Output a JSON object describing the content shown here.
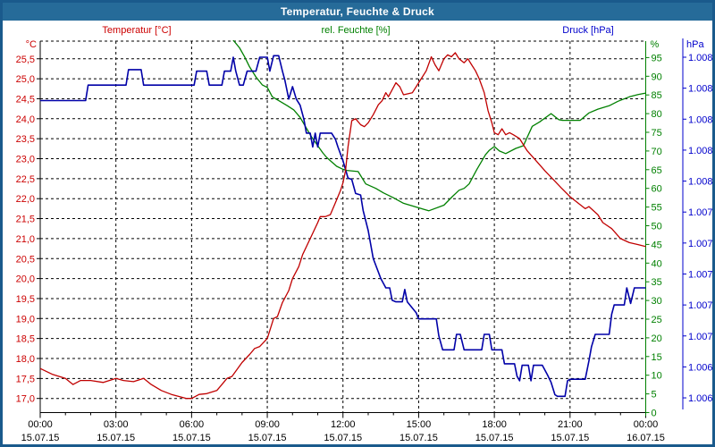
{
  "window": {
    "title": "Temperatur, Feuchte & Druck"
  },
  "legend": [
    {
      "key": "temperatur",
      "label": "Temperatur [°C]",
      "color": "#cc0000"
    },
    {
      "key": "feuchte",
      "label": "rel. Feuchte [%]",
      "color": "#008000"
    },
    {
      "key": "druck",
      "label": "Druck [hPa]",
      "color": "#0000cc"
    }
  ],
  "axes": {
    "left": {
      "unit": "°C",
      "color": "#cc0000",
      "ticks": [
        "25,5",
        "25,0",
        "24,5",
        "24,0",
        "23,5",
        "23,0",
        "22,5",
        "22,0",
        "21,5",
        "21,0",
        "20,5",
        "20,0",
        "19,5",
        "19,0",
        "18,5",
        "18,0",
        "17,5",
        "17,0"
      ]
    },
    "right_humidity": {
      "unit": "%",
      "color": "#008000",
      "ticks": [
        "95",
        "90",
        "85",
        "80",
        "75",
        "70",
        "65",
        "60",
        "55",
        "50",
        "45",
        "40",
        "35",
        "30",
        "25",
        "20",
        "15",
        "10",
        "5",
        "0"
      ]
    },
    "right_pressure": {
      "unit": "hPa",
      "color": "#0000cc",
      "ticks": [
        "1.008",
        "1.008",
        "1.008",
        "1.008",
        "1.008",
        "1.007",
        "1.007",
        "1.007",
        "1.007",
        "1.007",
        "1.006",
        "1.006"
      ]
    },
    "x": {
      "ticks": [
        {
          "time": "00:00",
          "date": "15.07.15"
        },
        {
          "time": "03:00",
          "date": "15.07.15"
        },
        {
          "time": "06:00",
          "date": "15.07.15"
        },
        {
          "time": "09:00",
          "date": "15.07.15"
        },
        {
          "time": "12:00",
          "date": "15.07.15"
        },
        {
          "time": "15:00",
          "date": "15.07.15"
        },
        {
          "time": "18:00",
          "date": "15.07.15"
        },
        {
          "time": "21:00",
          "date": "15.07.15"
        },
        {
          "time": "00:00",
          "date": "16.07.15"
        }
      ]
    }
  },
  "chart_data": {
    "type": "line",
    "title": "Temperatur, Feuchte & Druck",
    "x_unit": "hours (00:00 15.07.15 – 00:00 16.07.15)",
    "x_range": [
      0,
      24
    ],
    "grid": "dashed black, 0.5 °C horizontal steps, 3 h vertical steps",
    "legend_position": "top",
    "series": [
      {
        "key": "temperatur",
        "name": "Temperatur [°C]",
        "color": "#c00000",
        "axis": "temp_C",
        "axis_range": [
          17.0,
          25.5
        ],
        "points": [
          [
            0,
            17.75
          ],
          [
            0.5,
            17.6
          ],
          [
            1.0,
            17.5
          ],
          [
            1.3,
            17.35
          ],
          [
            1.6,
            17.45
          ],
          [
            2.0,
            17.45
          ],
          [
            2.5,
            17.4
          ],
          [
            3.0,
            17.5
          ],
          [
            3.3,
            17.45
          ],
          [
            3.7,
            17.42
          ],
          [
            4.1,
            17.5
          ],
          [
            4.4,
            17.35
          ],
          [
            4.8,
            17.2
          ],
          [
            5.2,
            17.1
          ],
          [
            5.5,
            17.05
          ],
          [
            5.8,
            17.0
          ],
          [
            6.0,
            17.0
          ],
          [
            6.3,
            17.1
          ],
          [
            6.6,
            17.12
          ],
          [
            7.0,
            17.2
          ],
          [
            7.2,
            17.35
          ],
          [
            7.4,
            17.5
          ],
          [
            7.6,
            17.55
          ],
          [
            8.0,
            17.9
          ],
          [
            8.3,
            18.1
          ],
          [
            8.5,
            18.25
          ],
          [
            8.7,
            18.3
          ],
          [
            9.0,
            18.5
          ],
          [
            9.25,
            19.0
          ],
          [
            9.4,
            19.05
          ],
          [
            9.6,
            19.4
          ],
          [
            9.85,
            19.7
          ],
          [
            10.0,
            20.0
          ],
          [
            10.25,
            20.3
          ],
          [
            10.4,
            20.6
          ],
          [
            10.7,
            21.0
          ],
          [
            11.0,
            21.4
          ],
          [
            11.1,
            21.55
          ],
          [
            11.3,
            21.55
          ],
          [
            11.5,
            21.6
          ],
          [
            11.7,
            21.9
          ],
          [
            11.9,
            22.2
          ],
          [
            12.0,
            22.4
          ],
          [
            12.1,
            22.7
          ],
          [
            12.2,
            23.3
          ],
          [
            12.35,
            23.95
          ],
          [
            12.5,
            24.0
          ],
          [
            12.7,
            23.85
          ],
          [
            12.85,
            23.8
          ],
          [
            13.0,
            23.9
          ],
          [
            13.2,
            24.1
          ],
          [
            13.4,
            24.35
          ],
          [
            13.55,
            24.45
          ],
          [
            13.7,
            24.65
          ],
          [
            13.8,
            24.55
          ],
          [
            14.1,
            24.9
          ],
          [
            14.25,
            24.8
          ],
          [
            14.4,
            24.6
          ],
          [
            14.75,
            24.65
          ],
          [
            15.0,
            24.9
          ],
          [
            15.3,
            25.2
          ],
          [
            15.5,
            25.55
          ],
          [
            15.65,
            25.35
          ],
          [
            15.8,
            25.2
          ],
          [
            16.0,
            25.5
          ],
          [
            16.15,
            25.6
          ],
          [
            16.3,
            25.55
          ],
          [
            16.45,
            25.65
          ],
          [
            16.6,
            25.5
          ],
          [
            16.8,
            25.4
          ],
          [
            16.95,
            25.5
          ],
          [
            17.1,
            25.35
          ],
          [
            17.25,
            25.2
          ],
          [
            17.4,
            25.0
          ],
          [
            17.6,
            24.65
          ],
          [
            17.75,
            24.2
          ],
          [
            17.9,
            23.9
          ],
          [
            18.0,
            23.65
          ],
          [
            18.15,
            23.6
          ],
          [
            18.3,
            23.75
          ],
          [
            18.45,
            23.6
          ],
          [
            18.6,
            23.65
          ],
          [
            18.75,
            23.6
          ],
          [
            19.0,
            23.5
          ],
          [
            19.3,
            23.2
          ],
          [
            19.65,
            22.95
          ],
          [
            20.0,
            22.7
          ],
          [
            20.3,
            22.5
          ],
          [
            20.65,
            22.27
          ],
          [
            21.0,
            22.05
          ],
          [
            21.3,
            21.9
          ],
          [
            21.6,
            21.75
          ],
          [
            21.75,
            21.8
          ],
          [
            22.1,
            21.6
          ],
          [
            22.3,
            21.4
          ],
          [
            22.65,
            21.25
          ],
          [
            23.0,
            21.0
          ],
          [
            23.35,
            20.9
          ],
          [
            23.7,
            20.85
          ],
          [
            24,
            20.8
          ]
        ]
      },
      {
        "key": "feuchte",
        "name": "rel. Feuchte [%]",
        "color": "#008000",
        "axis": "percent",
        "axis_range": [
          0,
          100
        ],
        "points": [
          [
            0,
            100.5
          ],
          [
            7.55,
            100.5
          ],
          [
            7.9,
            97.6
          ],
          [
            8.1,
            95.2
          ],
          [
            8.3,
            92.5
          ],
          [
            8.55,
            89.8
          ],
          [
            8.8,
            87.7
          ],
          [
            9.0,
            87.0
          ],
          [
            9.2,
            84.5
          ],
          [
            9.5,
            83.3
          ],
          [
            9.8,
            82.1
          ],
          [
            10.05,
            81.0
          ],
          [
            10.3,
            79.0
          ],
          [
            10.5,
            76.7
          ],
          [
            10.75,
            73.8
          ],
          [
            11.0,
            71.4
          ],
          [
            11.2,
            69.5
          ],
          [
            11.35,
            68.3
          ],
          [
            11.55,
            67.1
          ],
          [
            11.75,
            65.9
          ],
          [
            12.0,
            65.1
          ],
          [
            12.15,
            64.8
          ],
          [
            12.6,
            64.5
          ],
          [
            12.9,
            61.2
          ],
          [
            13.3,
            60.0
          ],
          [
            13.6,
            58.8
          ],
          [
            14.0,
            57.5
          ],
          [
            14.4,
            56.0
          ],
          [
            14.8,
            55.2
          ],
          [
            15.2,
            54.4
          ],
          [
            15.4,
            54.0
          ],
          [
            16.0,
            55.5
          ],
          [
            16.35,
            57.9
          ],
          [
            16.6,
            59.5
          ],
          [
            16.8,
            60.0
          ],
          [
            17.0,
            61.2
          ],
          [
            17.3,
            65.0
          ],
          [
            17.65,
            69.0
          ],
          [
            17.8,
            70.2
          ],
          [
            18.0,
            71.2
          ],
          [
            18.2,
            70.0
          ],
          [
            18.45,
            69.3
          ],
          [
            18.85,
            70.7
          ],
          [
            19.15,
            71.4
          ],
          [
            19.5,
            76.6
          ],
          [
            19.8,
            77.8
          ],
          [
            20.0,
            78.8
          ],
          [
            20.25,
            80.0
          ],
          [
            20.55,
            78.4
          ],
          [
            20.7,
            78.2
          ],
          [
            21.4,
            78.2
          ],
          [
            21.75,
            80.2
          ],
          [
            22.1,
            81.2
          ],
          [
            22.55,
            82.1
          ],
          [
            22.9,
            83.3
          ],
          [
            23.35,
            84.5
          ],
          [
            23.7,
            85.1
          ],
          [
            24,
            85.5
          ]
        ]
      },
      {
        "key": "druck",
        "name": "Druck [hPa]",
        "color": "#0000a8",
        "axis": "hPa",
        "axis_range": [
          1006.2,
          1008.4
        ],
        "points": [
          [
            0,
            1008.12
          ],
          [
            1.8,
            1008.12
          ],
          [
            1.9,
            1008.22
          ],
          [
            3.4,
            1008.22
          ],
          [
            3.5,
            1008.32
          ],
          [
            4.0,
            1008.32
          ],
          [
            4.1,
            1008.22
          ],
          [
            6.1,
            1008.22
          ],
          [
            6.2,
            1008.31
          ],
          [
            6.6,
            1008.31
          ],
          [
            6.7,
            1008.22
          ],
          [
            7.2,
            1008.22
          ],
          [
            7.3,
            1008.31
          ],
          [
            7.55,
            1008.31
          ],
          [
            7.65,
            1008.4
          ],
          [
            7.75,
            1008.31
          ],
          [
            7.9,
            1008.22
          ],
          [
            8.05,
            1008.22
          ],
          [
            8.2,
            1008.31
          ],
          [
            8.55,
            1008.31
          ],
          [
            8.7,
            1008.4
          ],
          [
            9.0,
            1008.4
          ],
          [
            9.1,
            1008.31
          ],
          [
            9.25,
            1008.41
          ],
          [
            9.45,
            1008.41
          ],
          [
            9.6,
            1008.31
          ],
          [
            9.7,
            1008.25
          ],
          [
            9.85,
            1008.13
          ],
          [
            10.0,
            1008.21
          ],
          [
            10.15,
            1008.13
          ],
          [
            10.3,
            1008.09
          ],
          [
            10.45,
            1008.0
          ],
          [
            10.55,
            1007.91
          ],
          [
            10.7,
            1007.91
          ],
          [
            10.8,
            1007.82
          ],
          [
            10.9,
            1007.91
          ],
          [
            11.0,
            1007.82
          ],
          [
            11.1,
            1007.91
          ],
          [
            11.55,
            1007.91
          ],
          [
            11.7,
            1007.87
          ],
          [
            11.8,
            1007.82
          ],
          [
            12.0,
            1007.73
          ],
          [
            12.2,
            1007.62
          ],
          [
            12.35,
            1007.61
          ],
          [
            12.5,
            1007.52
          ],
          [
            12.7,
            1007.51
          ],
          [
            12.8,
            1007.41
          ],
          [
            13.0,
            1007.28
          ],
          [
            13.2,
            1007.1
          ],
          [
            13.5,
            1006.97
          ],
          [
            13.7,
            1006.91
          ],
          [
            13.85,
            1006.91
          ],
          [
            13.95,
            1006.83
          ],
          [
            14.1,
            1006.82
          ],
          [
            14.35,
            1006.82
          ],
          [
            14.45,
            1006.9
          ],
          [
            14.55,
            1006.82
          ],
          [
            14.9,
            1006.75
          ],
          [
            15.0,
            1006.71
          ],
          [
            15.7,
            1006.71
          ],
          [
            15.8,
            1006.6
          ],
          [
            15.95,
            1006.51
          ],
          [
            16.4,
            1006.51
          ],
          [
            16.5,
            1006.61
          ],
          [
            16.65,
            1006.61
          ],
          [
            16.8,
            1006.51
          ],
          [
            17.5,
            1006.51
          ],
          [
            17.6,
            1006.61
          ],
          [
            17.8,
            1006.61
          ],
          [
            17.9,
            1006.51
          ],
          [
            18.3,
            1006.51
          ],
          [
            18.4,
            1006.42
          ],
          [
            18.8,
            1006.42
          ],
          [
            18.9,
            1006.34
          ],
          [
            19.0,
            1006.31
          ],
          [
            19.1,
            1006.41
          ],
          [
            19.35,
            1006.41
          ],
          [
            19.45,
            1006.31
          ],
          [
            19.55,
            1006.41
          ],
          [
            19.9,
            1006.41
          ],
          [
            20.1,
            1006.35
          ],
          [
            20.25,
            1006.3
          ],
          [
            20.4,
            1006.22
          ],
          [
            20.5,
            1006.21
          ],
          [
            20.8,
            1006.21
          ],
          [
            20.9,
            1006.31
          ],
          [
            21.0,
            1006.32
          ],
          [
            21.6,
            1006.32
          ],
          [
            21.75,
            1006.44
          ],
          [
            21.85,
            1006.53
          ],
          [
            22.0,
            1006.61
          ],
          [
            22.55,
            1006.61
          ],
          [
            22.65,
            1006.74
          ],
          [
            22.75,
            1006.8
          ],
          [
            23.15,
            1006.8
          ],
          [
            23.25,
            1006.91
          ],
          [
            23.4,
            1006.81
          ],
          [
            23.55,
            1006.91
          ],
          [
            24,
            1006.91
          ]
        ]
      }
    ]
  }
}
